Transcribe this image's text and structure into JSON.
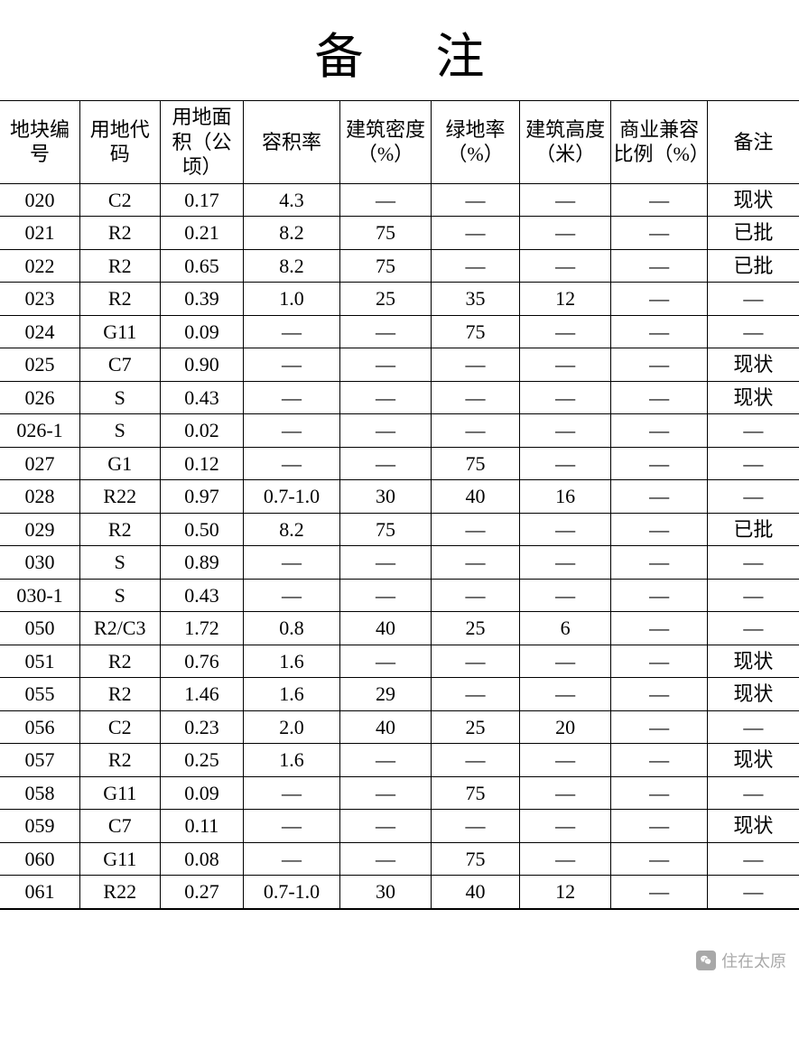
{
  "title": "备注",
  "table": {
    "type": "table",
    "border_color": "#000000",
    "background_color": "#ffffff",
    "text_color": "#000000",
    "header_fontsize": 22,
    "cell_fontsize": 22,
    "dash_glyph": "—",
    "columns": [
      "地块编号",
      "用地代码",
      "用地面积（公顷）",
      "容积率",
      "建筑密度（%）",
      "绿地率（%）",
      "建筑高度（米）",
      "商业兼容比例（%）",
      "备注"
    ],
    "column_widths_pct": [
      10,
      10,
      10.5,
      12,
      11.5,
      11,
      11.5,
      12,
      11.5
    ],
    "rows": [
      [
        "020",
        "C2",
        "0.17",
        "4.3",
        "—",
        "—",
        "—",
        "—",
        "现状"
      ],
      [
        "021",
        "R2",
        "0.21",
        "8.2",
        "75",
        "—",
        "—",
        "—",
        "已批"
      ],
      [
        "022",
        "R2",
        "0.65",
        "8.2",
        "75",
        "—",
        "—",
        "—",
        "已批"
      ],
      [
        "023",
        "R2",
        "0.39",
        "1.0",
        "25",
        "35",
        "12",
        "—",
        "—"
      ],
      [
        "024",
        "G11",
        "0.09",
        "—",
        "—",
        "75",
        "—",
        "—",
        "—"
      ],
      [
        "025",
        "C7",
        "0.90",
        "—",
        "—",
        "—",
        "—",
        "—",
        "现状"
      ],
      [
        "026",
        "S",
        "0.43",
        "—",
        "—",
        "—",
        "—",
        "—",
        "现状"
      ],
      [
        "026-1",
        "S",
        "0.02",
        "—",
        "—",
        "—",
        "—",
        "—",
        "—"
      ],
      [
        "027",
        "G1",
        "0.12",
        "—",
        "—",
        "75",
        "—",
        "—",
        "—"
      ],
      [
        "028",
        "R22",
        "0.97",
        "0.7-1.0",
        "30",
        "40",
        "16",
        "—",
        "—"
      ],
      [
        "029",
        "R2",
        "0.50",
        "8.2",
        "75",
        "—",
        "—",
        "—",
        "已批"
      ],
      [
        "030",
        "S",
        "0.89",
        "—",
        "—",
        "—",
        "—",
        "—",
        "—"
      ],
      [
        "030-1",
        "S",
        "0.43",
        "—",
        "—",
        "—",
        "—",
        "—",
        "—"
      ],
      [
        "050",
        "R2/C3",
        "1.72",
        "0.8",
        "40",
        "25",
        "6",
        "—",
        "—"
      ],
      [
        "051",
        "R2",
        "0.76",
        "1.6",
        "—",
        "—",
        "—",
        "—",
        "现状"
      ],
      [
        "055",
        "R2",
        "1.46",
        "1.6",
        "29",
        "—",
        "—",
        "—",
        "现状"
      ],
      [
        "056",
        "C2",
        "0.23",
        "2.0",
        "40",
        "25",
        "20",
        "—",
        "—"
      ],
      [
        "057",
        "R2",
        "0.25",
        "1.6",
        "—",
        "—",
        "—",
        "—",
        "现状"
      ],
      [
        "058",
        "G11",
        "0.09",
        "—",
        "—",
        "75",
        "—",
        "—",
        "—"
      ],
      [
        "059",
        "C7",
        "0.11",
        "—",
        "—",
        "—",
        "—",
        "—",
        "现状"
      ],
      [
        "060",
        "G11",
        "0.08",
        "—",
        "—",
        "75",
        "—",
        "—",
        "—"
      ],
      [
        "061",
        "R22",
        "0.27",
        "0.7-1.0",
        "30",
        "40",
        "12",
        "—",
        "—"
      ]
    ]
  },
  "watermark": {
    "text": "住在太原",
    "text_color": "#9a9a9a",
    "icon_bg": "#9a9a9a",
    "fontsize": 18
  }
}
